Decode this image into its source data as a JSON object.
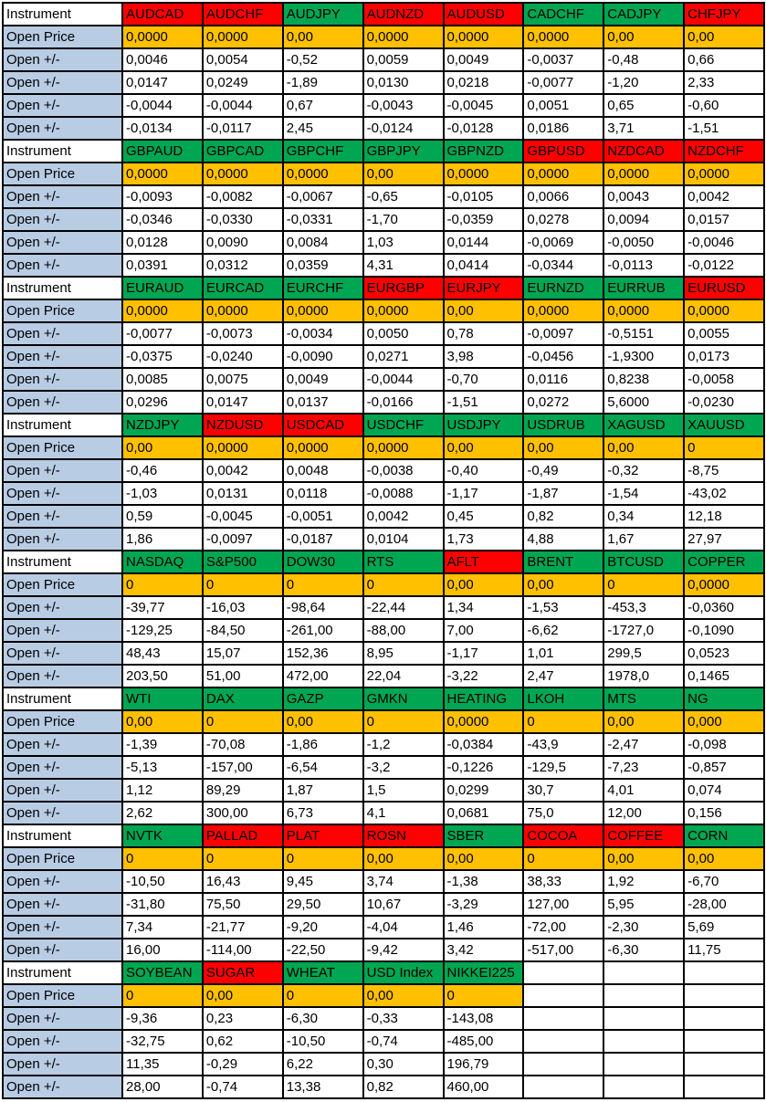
{
  "table": {
    "row_labels": {
      "instrument": "Instrument",
      "open_price": "Open Price",
      "open_change": "Open +/-"
    },
    "change_row_count": 4,
    "max_columns": 8,
    "colors": {
      "red_header": "#FF0000",
      "green_header": "#00A651",
      "open_price_bg": "#FFC000",
      "label_bg": "#B8CCE4",
      "border": "#000000"
    },
    "blocks": [
      {
        "instruments": [
          {
            "name": "AUDCAD",
            "color": "red",
            "open_price": "0,0000",
            "changes": [
              "0,0046",
              "0,0147",
              "-0,0044",
              "-0,0134"
            ]
          },
          {
            "name": "AUDCHF",
            "color": "red",
            "open_price": "0,0000",
            "changes": [
              "0,0054",
              "0,0249",
              "-0,0044",
              "-0,0117"
            ]
          },
          {
            "name": "AUDJPY",
            "color": "green",
            "open_price": "0,00",
            "changes": [
              "-0,52",
              "-1,89",
              "0,67",
              "2,45"
            ]
          },
          {
            "name": "AUDNZD",
            "color": "red",
            "open_price": "0,0000",
            "changes": [
              "0,0059",
              "0,0130",
              "-0,0043",
              "-0,0124"
            ]
          },
          {
            "name": "AUDUSD",
            "color": "red",
            "open_price": "0,0000",
            "changes": [
              "0,0049",
              "0,0218",
              "-0,0045",
              "-0,0128"
            ]
          },
          {
            "name": "CADCHF",
            "color": "green",
            "open_price": "0,0000",
            "changes": [
              "-0,0037",
              "-0,0077",
              "0,0051",
              "0,0186"
            ]
          },
          {
            "name": "CADJPY",
            "color": "green",
            "open_price": "0,00",
            "changes": [
              "-0,48",
              "-1,20",
              "0,65",
              "3,71"
            ]
          },
          {
            "name": "CHFJPY",
            "color": "red",
            "open_price": "0,00",
            "changes": [
              "0,66",
              "2,33",
              "-0,60",
              "-1,51"
            ]
          }
        ]
      },
      {
        "instruments": [
          {
            "name": "GBPAUD",
            "color": "green",
            "open_price": "0,0000",
            "changes": [
              "-0,0093",
              "-0,0346",
              "0,0128",
              "0,0391"
            ]
          },
          {
            "name": "GBPCAD",
            "color": "green",
            "open_price": "0,0000",
            "changes": [
              "-0,0082",
              "-0,0330",
              "0,0090",
              "0,0312"
            ]
          },
          {
            "name": "GBPCHF",
            "color": "green",
            "open_price": "0,0000",
            "changes": [
              "-0,0067",
              "-0,0331",
              "0,0084",
              "0,0359"
            ]
          },
          {
            "name": "GBPJPY",
            "color": "green",
            "open_price": "0,00",
            "changes": [
              "-0,65",
              "-1,70",
              "1,03",
              "4,31"
            ]
          },
          {
            "name": "GBPNZD",
            "color": "green",
            "open_price": "0,0000",
            "changes": [
              "-0,0105",
              "-0,0359",
              "0,0144",
              "0,0414"
            ]
          },
          {
            "name": "GBPUSD",
            "color": "red",
            "open_price": "0,0000",
            "changes": [
              "0,0066",
              "0,0278",
              "-0,0069",
              "-0,0344"
            ]
          },
          {
            "name": "NZDCAD",
            "color": "red",
            "open_price": "0,0000",
            "changes": [
              "0,0043",
              "0,0094",
              "-0,0050",
              "-0,0113"
            ]
          },
          {
            "name": "NZDCHF",
            "color": "red",
            "open_price": "0,0000",
            "changes": [
              "0,0042",
              "0,0157",
              "-0,0046",
              "-0,0122"
            ]
          }
        ]
      },
      {
        "instruments": [
          {
            "name": "EURAUD",
            "color": "green",
            "open_price": "0,0000",
            "changes": [
              "-0,0077",
              "-0,0375",
              "0,0085",
              "0,0296"
            ]
          },
          {
            "name": "EURCAD",
            "color": "green",
            "open_price": "0,0000",
            "changes": [
              "-0,0073",
              "-0,0240",
              "0,0075",
              "0,0147"
            ]
          },
          {
            "name": "EURCHF",
            "color": "green",
            "open_price": "0,0000",
            "changes": [
              "-0,0034",
              "-0,0090",
              "0,0049",
              "0,0137"
            ]
          },
          {
            "name": "EURGBP",
            "color": "red",
            "open_price": "0,0000",
            "changes": [
              "0,0050",
              "0,0271",
              "-0,0044",
              "-0,0166"
            ]
          },
          {
            "name": "EURJPY",
            "color": "red",
            "open_price": "0,00",
            "changes": [
              "0,78",
              "3,98",
              "-0,70",
              "-1,51"
            ]
          },
          {
            "name": "EURNZD",
            "color": "green",
            "open_price": "0,0000",
            "changes": [
              "-0,0097",
              "-0,0456",
              "0,0116",
              "0,0272"
            ]
          },
          {
            "name": "EURRUB",
            "color": "green",
            "open_price": "0,0000",
            "changes": [
              "-0,5151",
              "-1,9300",
              "0,8238",
              "5,6000"
            ]
          },
          {
            "name": "EURUSD",
            "color": "red",
            "open_price": "0,0000",
            "changes": [
              "0,0055",
              "0,0173",
              "-0,0058",
              "-0,0230"
            ]
          }
        ]
      },
      {
        "instruments": [
          {
            "name": "NZDJPY",
            "color": "green",
            "open_price": "0,00",
            "changes": [
              "-0,46",
              "-1,03",
              "0,59",
              "1,86"
            ]
          },
          {
            "name": "NZDUSD",
            "color": "red",
            "open_price": "0,0000",
            "changes": [
              "0,0042",
              "0,0131",
              "-0,0045",
              "-0,0097"
            ]
          },
          {
            "name": "USDCAD",
            "color": "red",
            "open_price": "0,0000",
            "changes": [
              "0,0048",
              "0,0118",
              "-0,0051",
              "-0,0187"
            ]
          },
          {
            "name": "USDCHF",
            "color": "green",
            "open_price": "0,0000",
            "changes": [
              "-0,0038",
              "-0,0088",
              "0,0042",
              "0,0104"
            ]
          },
          {
            "name": "USDJPY",
            "color": "green",
            "open_price": "0,00",
            "changes": [
              "-0,40",
              "-1,17",
              "0,45",
              "1,73"
            ]
          },
          {
            "name": "USDRUB",
            "color": "green",
            "open_price": "0,00",
            "changes": [
              "-0,49",
              "-1,87",
              "0,82",
              "4,88"
            ]
          },
          {
            "name": "XAGUSD",
            "color": "green",
            "open_price": "0,00",
            "changes": [
              "-0,32",
              "-1,54",
              "0,34",
              "1,67"
            ]
          },
          {
            "name": "XAUUSD",
            "color": "green",
            "open_price": "0",
            "changes": [
              "-8,75",
              "-43,02",
              "12,18",
              "27,97"
            ]
          }
        ]
      },
      {
        "instruments": [
          {
            "name": "NASDAQ",
            "color": "green",
            "open_price": "0",
            "changes": [
              "-39,77",
              "-129,25",
              "48,43",
              "203,50"
            ]
          },
          {
            "name": "S&P500",
            "color": "green",
            "open_price": "0",
            "changes": [
              "-16,03",
              "-84,50",
              "15,07",
              "51,00"
            ]
          },
          {
            "name": "DOW30",
            "color": "green",
            "open_price": "0",
            "changes": [
              "-98,64",
              "-261,00",
              "152,36",
              "472,00"
            ]
          },
          {
            "name": "RTS",
            "color": "green",
            "open_price": "0",
            "changes": [
              "-22,44",
              "-88,00",
              "8,95",
              "22,04"
            ]
          },
          {
            "name": "AFLT",
            "color": "red",
            "open_price": "0,00",
            "changes": [
              "1,34",
              "7,00",
              "-1,17",
              "-3,22"
            ]
          },
          {
            "name": "BRENT",
            "color": "green",
            "open_price": "0,00",
            "changes": [
              "-1,53",
              "-6,62",
              "1,01",
              "2,47"
            ]
          },
          {
            "name": "BTCUSD",
            "color": "green",
            "open_price": "0",
            "changes": [
              "-453,3",
              "-1727,0",
              "299,5",
              "1978,0"
            ]
          },
          {
            "name": "COPPER",
            "color": "green",
            "open_price": "0,0000",
            "changes": [
              "-0,0360",
              "-0,1090",
              "0,0523",
              "0,1465"
            ]
          }
        ]
      },
      {
        "instruments": [
          {
            "name": "WTI",
            "color": "green",
            "open_price": "0,00",
            "changes": [
              "-1,39",
              "-5,13",
              "1,12",
              "2,62"
            ]
          },
          {
            "name": "DAX",
            "color": "green",
            "open_price": "0",
            "changes": [
              "-70,08",
              "-157,00",
              "89,29",
              "300,00"
            ]
          },
          {
            "name": "GAZP",
            "color": "green",
            "open_price": "0,00",
            "changes": [
              "-1,86",
              "-6,54",
              "1,87",
              "6,73"
            ]
          },
          {
            "name": "GMKN",
            "color": "green",
            "open_price": "0",
            "changes": [
              "-1,2",
              "-3,2",
              "1,5",
              "4,1"
            ]
          },
          {
            "name": "HEATING",
            "color": "green",
            "open_price": "0,0000",
            "changes": [
              "-0,0384",
              "-0,1226",
              "0,0299",
              "0,0681"
            ]
          },
          {
            "name": "LKOH",
            "color": "green",
            "open_price": "0",
            "changes": [
              "-43,9",
              "-129,5",
              "30,7",
              "75,0"
            ]
          },
          {
            "name": "MTS",
            "color": "green",
            "open_price": "0,00",
            "changes": [
              "-2,47",
              "-7,23",
              "4,01",
              "12,00"
            ]
          },
          {
            "name": "NG",
            "color": "green",
            "open_price": "0,000",
            "changes": [
              "-0,098",
              "-0,857",
              "0,074",
              "0,156"
            ]
          }
        ]
      },
      {
        "instruments": [
          {
            "name": "NVTK",
            "color": "green",
            "open_price": "0",
            "changes": [
              "-10,50",
              "-31,80",
              "7,34",
              "16,00"
            ]
          },
          {
            "name": "PALLAD",
            "color": "red",
            "open_price": "0",
            "changes": [
              "16,43",
              "75,50",
              "-21,77",
              "-114,00"
            ]
          },
          {
            "name": "PLAT",
            "color": "red",
            "open_price": "0",
            "changes": [
              "9,45",
              "29,50",
              "-9,20",
              "-22,50"
            ]
          },
          {
            "name": "ROSN",
            "color": "red",
            "open_price": "0,00",
            "changes": [
              "3,74",
              "10,67",
              "-4,04",
              "-9,42"
            ]
          },
          {
            "name": "SBER",
            "color": "green",
            "open_price": "0,00",
            "changes": [
              "-1,38",
              "-3,29",
              "1,46",
              "3,42"
            ]
          },
          {
            "name": "COCOA",
            "color": "red",
            "open_price": "0",
            "changes": [
              "38,33",
              "127,00",
              "-72,00",
              "-517,00"
            ]
          },
          {
            "name": "COFFEE",
            "color": "red",
            "open_price": "0,00",
            "changes": [
              "1,92",
              "5,95",
              "-2,30",
              "-6,30"
            ]
          },
          {
            "name": "CORN",
            "color": "green",
            "open_price": "0,00",
            "changes": [
              "-6,70",
              "-28,00",
              "5,69",
              "11,75"
            ]
          }
        ]
      },
      {
        "instruments": [
          {
            "name": "SOYBEAN",
            "color": "green",
            "open_price": "0",
            "changes": [
              "-9,36",
              "-32,75",
              "11,35",
              "28,00"
            ]
          },
          {
            "name": "SUGAR",
            "color": "red",
            "open_price": "0,00",
            "changes": [
              "0,23",
              "0,62",
              "-0,29",
              "-0,74"
            ]
          },
          {
            "name": "WHEAT",
            "color": "green",
            "open_price": "0",
            "changes": [
              "-6,30",
              "-10,50",
              "6,22",
              "13,38"
            ]
          },
          {
            "name": "USD Index",
            "color": "green",
            "open_price": "0,00",
            "changes": [
              "-0,33",
              "-0,74",
              "0,30",
              "0,82"
            ]
          },
          {
            "name": "NIKKEI225",
            "color": "green",
            "open_price": "0",
            "changes": [
              "-143,08",
              "-485,00",
              "196,79",
              "460,00"
            ]
          }
        ]
      }
    ]
  }
}
